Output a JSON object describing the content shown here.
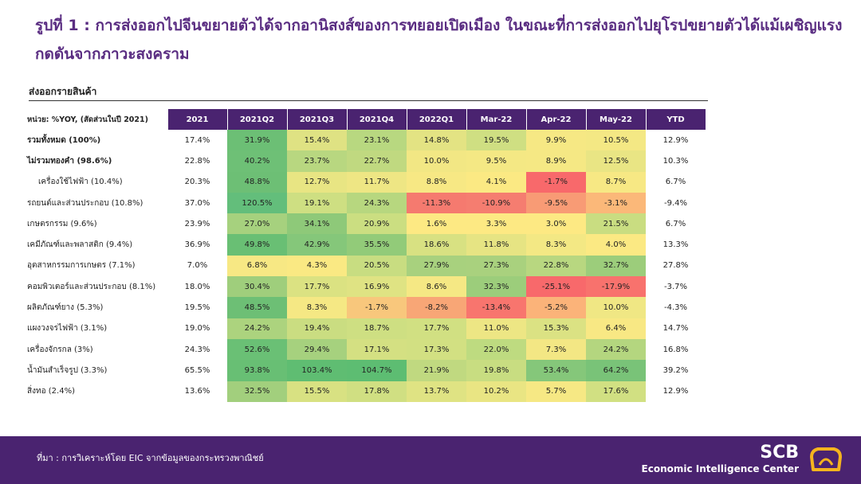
{
  "title": "รูปที่ 1 : การส่งออกไปจีนขยายตัวได้จากอานิสงส์ของการทยอยเปิดเมือง ในขณะที่การส่งออกไปยุโรปขยายตัวได้แม้เผชิญแรงกดดันจากภาวะสงคราม",
  "subtitle": "ส่งออกรายสินค้า",
  "table": {
    "unit_label": "หน่วย: %YOY, (สัดส่วนในปี 2021)",
    "columns": [
      "2021",
      "2021Q2",
      "2021Q3",
      "2021Q4",
      "2022Q1",
      "Mar-22",
      "Apr-22",
      "May-22",
      "YTD"
    ],
    "rows": [
      {
        "label": "รวมทั้งหมด (100%)",
        "bold": true,
        "indent": false,
        "values": [
          "17.4%",
          "31.9%",
          "15.4%",
          "23.1%",
          "14.8%",
          "19.5%",
          "9.9%",
          "10.5%",
          "12.9%"
        ]
      },
      {
        "label": "ไม่รวมทองคำ (98.6%)",
        "bold": true,
        "indent": false,
        "values": [
          "22.8%",
          "40.2%",
          "23.7%",
          "22.7%",
          "10.0%",
          "9.5%",
          "8.9%",
          "12.5%",
          "10.3%"
        ]
      },
      {
        "label": "เครื่องใช้ไฟฟ้า (10.4%)",
        "bold": false,
        "indent": true,
        "values": [
          "20.3%",
          "48.8%",
          "12.7%",
          "11.7%",
          "8.8%",
          "4.1%",
          "-1.7%",
          "8.7%",
          "6.7%"
        ]
      },
      {
        "label": "รถยนต์และส่วนประกอบ (10.8%)",
        "bold": false,
        "indent": false,
        "values": [
          "37.0%",
          "120.5%",
          "19.1%",
          "24.3%",
          "-11.3%",
          "-10.9%",
          "-9.5%",
          "-3.1%",
          "-9.4%"
        ]
      },
      {
        "label": "เกษตรกรรม (9.6%)",
        "bold": false,
        "indent": false,
        "values": [
          "23.9%",
          "27.0%",
          "34.1%",
          "20.9%",
          "1.6%",
          "3.3%",
          "3.0%",
          "21.5%",
          "6.7%"
        ]
      },
      {
        "label": "เคมีภัณฑ์และพลาสติก (9.4%)",
        "bold": false,
        "indent": false,
        "values": [
          "36.9%",
          "49.8%",
          "42.9%",
          "35.5%",
          "18.6%",
          "11.8%",
          "8.3%",
          "4.0%",
          "13.3%"
        ]
      },
      {
        "label": "อุตสาหกรรมการเกษตร (7.1%)",
        "bold": false,
        "indent": false,
        "values": [
          "7.0%",
          "6.8%",
          "4.3%",
          "20.5%",
          "27.9%",
          "27.3%",
          "22.8%",
          "32.7%",
          "27.8%"
        ]
      },
      {
        "label": "คอมพิวเตอร์และส่วนประกอบ (8.1%)",
        "bold": false,
        "indent": false,
        "values": [
          "18.0%",
          "30.4%",
          "17.7%",
          "16.9%",
          "8.6%",
          "32.3%",
          "-25.1%",
          "-17.9%",
          "-3.7%"
        ]
      },
      {
        "label": "ผลิตภัณฑ์ยาง (5.3%)",
        "bold": false,
        "indent": false,
        "values": [
          "19.5%",
          "48.5%",
          "8.3%",
          "-1.7%",
          "-8.2%",
          "-13.4%",
          "-5.2%",
          "10.0%",
          "-4.3%"
        ]
      },
      {
        "label": "แผงวงจรไฟฟ้า (3.1%)",
        "bold": false,
        "indent": false,
        "values": [
          "19.0%",
          "24.2%",
          "19.4%",
          "18.7%",
          "17.7%",
          "11.0%",
          "15.3%",
          "6.4%",
          "14.7%"
        ]
      },
      {
        "label": "เครื่องจักรกล (3%)",
        "bold": false,
        "indent": false,
        "values": [
          "24.3%",
          "52.6%",
          "29.4%",
          "17.1%",
          "17.3%",
          "22.0%",
          "7.3%",
          "24.2%",
          "16.8%"
        ]
      },
      {
        "label": "น้ำมันสำเร็จรูป (3.3%)",
        "bold": false,
        "indent": false,
        "values": [
          "65.5%",
          "93.8%",
          "103.4%",
          "104.7%",
          "21.9%",
          "19.8%",
          "53.4%",
          "64.2%",
          "39.2%"
        ]
      },
      {
        "label": "สิ่งทอ (2.4%)",
        "bold": false,
        "indent": false,
        "values": [
          "13.6%",
          "32.5%",
          "15.5%",
          "17.8%",
          "13.7%",
          "10.2%",
          "5.7%",
          "17.6%",
          "12.9%"
        ]
      }
    ],
    "cell_colors": [
      [
        null,
        "#6cbf75",
        "#dfe283",
        "#b8d880",
        "#e3e383",
        "#cfdf82",
        "#f6e884",
        "#f4e884",
        null
      ],
      [
        null,
        "#6ec076",
        "#b8d780",
        "#c0d980",
        "#f2e784",
        "#f4e884",
        "#f5e884",
        "#e9e584",
        null
      ],
      [
        null,
        "#6dbf75",
        "#e8e583",
        "#eee684",
        "#f7e884",
        "#fbe983",
        "#f8696b",
        "#f7e884",
        null
      ],
      [
        null,
        "#63be7b",
        "#cedf82",
        "#b7d77f",
        "#f57a6f",
        "#f57d70",
        "#f89b75",
        "#fbb879",
        null
      ],
      [
        null,
        "#a6d17e",
        "#8ec979",
        "#cbde81",
        "#fde983",
        "#fde983",
        "#fde983",
        "#c9dd81",
        null
      ],
      [
        null,
        "#69bf74",
        "#85c77a",
        "#92cb79",
        "#d8e182",
        "#e6e483",
        "#f3e884",
        "#fbe983",
        null
      ],
      [
        null,
        "#f7e884",
        "#fae983",
        "#c8dd81",
        "#a8d17e",
        "#a9d17e",
        "#b8d780",
        "#9ccd7b",
        null
      ],
      [
        null,
        "#9fce7c",
        "#dbe282",
        "#dfe383",
        "#f5e884",
        "#9ccd7b",
        "#f8696b",
        "#f8726d",
        null
      ],
      [
        null,
        "#6dbf75",
        "#f5e884",
        "#f8c77c",
        "#f8a676",
        "#f8756e",
        "#fbb379",
        "#f0e784",
        null
      ],
      [
        null,
        "#acd37e",
        "#cadd81",
        "#cedf82",
        "#d1e082",
        "#ede684",
        "#dbe283",
        "#f8e884",
        null
      ],
      [
        null,
        "#6ac075",
        "#a6d17e",
        "#d4e082",
        "#d2e082",
        "#bedb80",
        "#f3e784",
        "#b4d67f",
        null
      ],
      [
        null,
        "#68bf74",
        "#5fbd72",
        "#5dbd72",
        "#c0d980",
        "#c8dd81",
        "#85c77a",
        "#79c378",
        null
      ],
      [
        null,
        "#a2cf7d",
        "#d8e182",
        "#d0df82",
        "#dfe383",
        "#e9e583",
        "#f6e884",
        "#d1e082",
        null
      ]
    ]
  },
  "footer": {
    "source": "ที่มา : การวิเคราะห์โดย EIC จากข้อมูลของกระทรวงพาณิชย์",
    "brand": "SCB",
    "brand_sub": "Economic Intelligence Center"
  },
  "colors": {
    "brand_purple": "#4a2370",
    "title_purple": "#5a2d82",
    "logo_gold": "#f5b41e"
  },
  "icons": {
    "logo": "scb-crown-logo"
  }
}
